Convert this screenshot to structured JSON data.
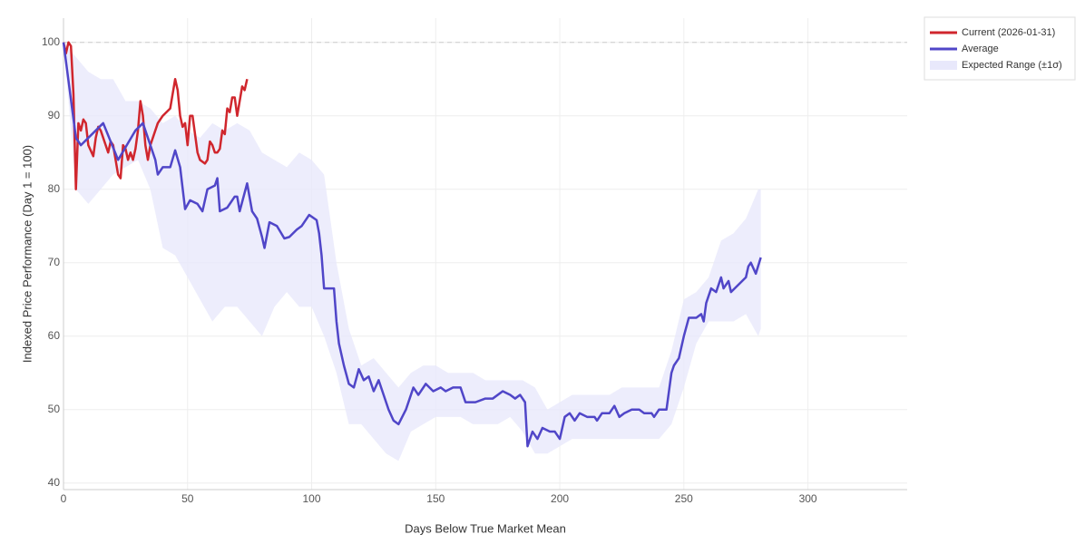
{
  "chart_data": {
    "type": "line",
    "xlabel": "Days Below True Market Mean",
    "ylabel": "Indexed Price Performance (Day 1 = 100)",
    "xlim": [
      0,
      340
    ],
    "ylim": [
      39.1,
      103.3
    ],
    "xticks": [
      0,
      50,
      100,
      150,
      200,
      250,
      300
    ],
    "yticks": [
      40,
      50,
      60,
      70,
      80,
      90,
      100
    ],
    "grid": true,
    "reference_line": 100,
    "legend": "outside-top-right",
    "band": {
      "name": "Expected Range (±1σ)",
      "color": "#e8e8fb",
      "x": [
        0,
        5,
        10,
        15,
        20,
        25,
        30,
        35,
        40,
        45,
        50,
        55,
        60,
        65,
        70,
        75,
        80,
        85,
        90,
        95,
        100,
        105,
        110,
        115,
        120,
        125,
        130,
        135,
        140,
        145,
        150,
        155,
        160,
        165,
        170,
        175,
        180,
        185,
        190,
        195,
        200,
        205,
        210,
        215,
        220,
        225,
        230,
        235,
        240,
        245,
        250,
        255,
        260,
        265,
        270,
        275,
        280,
        281
      ],
      "upper": [
        100,
        98,
        96,
        95,
        95,
        92,
        92,
        91,
        89,
        90,
        88,
        87,
        89,
        88,
        89,
        88,
        85,
        84,
        83,
        85,
        84,
        82,
        70,
        61,
        56,
        57,
        55,
        53,
        55,
        56,
        56,
        55,
        55,
        55,
        54,
        54,
        54,
        54,
        53,
        50,
        51,
        52,
        52,
        52,
        52,
        53,
        53,
        53,
        53,
        58,
        65,
        66,
        68,
        73,
        74,
        76,
        80,
        80
      ],
      "lower": [
        100,
        80,
        78,
        80,
        82,
        83,
        84,
        80,
        72,
        71,
        68,
        65,
        62,
        64,
        64,
        62,
        60,
        64,
        66,
        64,
        64,
        60,
        55,
        48,
        48,
        46,
        44,
        43,
        47,
        48,
        49,
        49,
        49,
        48,
        48,
        48,
        49,
        47,
        44,
        44,
        45,
        46,
        46,
        46,
        46,
        46,
        46,
        46,
        46,
        48,
        53,
        59,
        62,
        62,
        62,
        63,
        60,
        61
      ]
    },
    "series": [
      {
        "name": "Current (2026-01-31)",
        "color": "#d0262d",
        "x": [
          0,
          1,
          2,
          3,
          4,
          5,
          6,
          7,
          8,
          9,
          10,
          12,
          13,
          14,
          15,
          17,
          18,
          19,
          20,
          21,
          22,
          23,
          24,
          25,
          26,
          27,
          28,
          29,
          30,
          31,
          32,
          33,
          34,
          35,
          38,
          40,
          43,
          45,
          46,
          47,
          48,
          49,
          50,
          51,
          52,
          53,
          54,
          55,
          57,
          58,
          59,
          60,
          61,
          62,
          63,
          64,
          65,
          66,
          67,
          68,
          69,
          70,
          72,
          73,
          74
        ],
        "values": [
          100,
          98.5,
          100,
          99.5,
          93,
          80,
          89,
          88,
          89.5,
          89,
          86,
          84.5,
          87,
          88.5,
          88,
          86,
          85,
          86.5,
          86,
          84,
          82,
          81.5,
          86,
          85.5,
          84,
          85,
          84,
          85.5,
          88,
          92,
          90,
          86,
          84,
          86,
          89,
          90,
          91,
          95,
          93.5,
          90,
          88.5,
          89,
          86,
          90,
          90,
          87.5,
          85,
          84,
          83.5,
          84,
          86.5,
          86,
          85,
          85,
          85.5,
          88,
          87.5,
          91,
          90.5,
          92.5,
          92.5,
          90,
          94,
          93.5,
          95
        ]
      },
      {
        "name": "Average",
        "color": "#5046c8",
        "x": [
          0,
          5,
          7,
          16,
          22,
          29,
          32,
          37,
          38,
          40,
          43,
          45,
          47,
          49,
          51,
          54,
          56,
          58,
          61,
          62,
          63,
          66,
          69,
          70,
          71,
          74,
          76,
          78,
          80,
          81,
          83,
          86,
          89,
          91,
          94,
          96,
          99,
          102,
          103,
          104,
          105,
          109,
          110,
          111,
          113,
          115,
          117,
          119,
          121,
          123,
          125,
          127,
          129,
          131,
          133,
          135,
          138,
          141,
          143,
          146,
          149,
          152,
          154,
          157,
          160,
          162,
          166,
          170,
          173,
          177,
          180,
          182,
          184,
          186,
          187,
          189,
          191,
          193,
          196,
          198,
          200,
          202,
          204,
          206,
          208,
          211,
          214,
          215,
          217,
          220,
          222,
          224,
          226,
          229,
          232,
          234,
          237,
          238,
          240,
          243,
          245,
          246,
          248,
          250,
          252,
          255,
          257,
          258,
          259,
          261,
          263,
          265,
          266,
          268,
          269,
          272,
          275,
          276,
          277,
          279,
          281
        ],
        "values": [
          100,
          87,
          86,
          89,
          84,
          88,
          89,
          84,
          82,
          83,
          83,
          85.3,
          83,
          77.3,
          78.5,
          78,
          77,
          80,
          80.5,
          81.5,
          77,
          77.5,
          79,
          79,
          77,
          80.8,
          77,
          76,
          73.5,
          72,
          75.5,
          75,
          73.3,
          73.5,
          74.5,
          75,
          76.5,
          75.8,
          74,
          71,
          66.5,
          66.5,
          62,
          59,
          56,
          53.5,
          53,
          55.5,
          54,
          54.5,
          52.5,
          54,
          52,
          50,
          48.5,
          48,
          50,
          53,
          52,
          53.5,
          52.5,
          53,
          52.5,
          53,
          53,
          51,
          51,
          51.5,
          51.5,
          52.5,
          52,
          51.5,
          52,
          51,
          45,
          47,
          46,
          47.5,
          47,
          47,
          46,
          49,
          49.5,
          48.5,
          49.5,
          49,
          49,
          48.5,
          49.5,
          49.5,
          50.5,
          49,
          49.5,
          50,
          50,
          49.5,
          49.5,
          49,
          50,
          50,
          55,
          56,
          57,
          60,
          62.5,
          62.5,
          63,
          62,
          64.5,
          66.5,
          66,
          68,
          66.5,
          67.5,
          66,
          67,
          68,
          69.5,
          70,
          68.5,
          70.7
        ]
      }
    ]
  }
}
